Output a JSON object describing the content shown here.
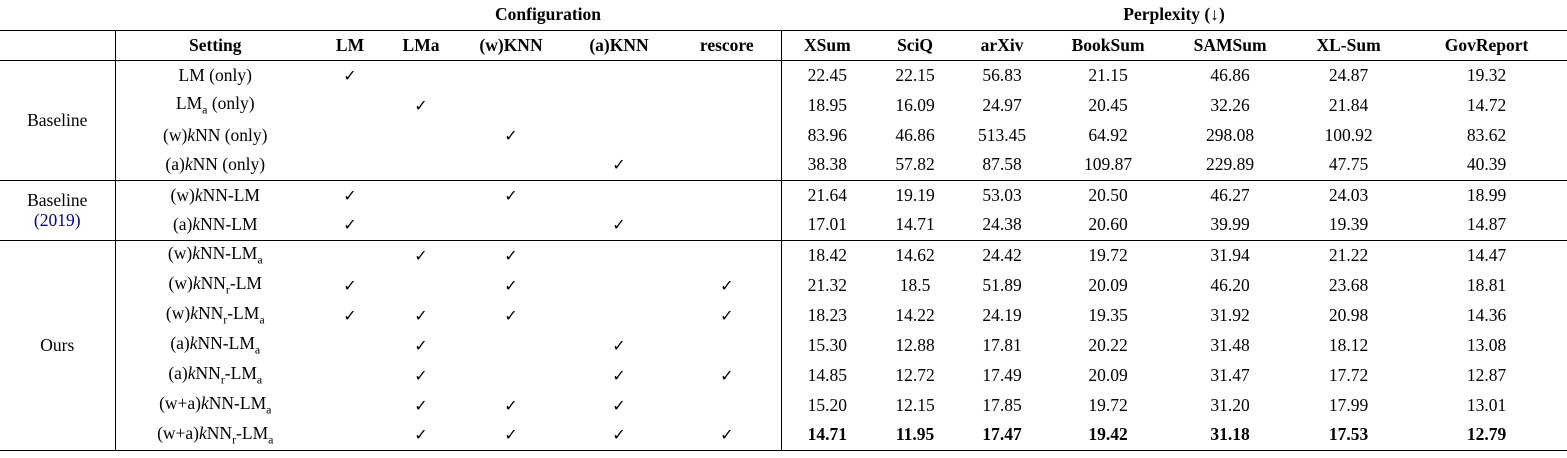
{
  "colors": {
    "citation": "#00009B",
    "text": "#000000",
    "background": "#FFFFFF"
  },
  "header": {
    "configuration": "Configuration",
    "perplexity": "Perplexity (↓)",
    "columns": {
      "setting": "Setting",
      "lm": "LM",
      "lma": "LMa",
      "wknn": "(w)KNN",
      "aknn": "(a)KNN",
      "rescore": "rescore",
      "datasets": [
        "XSum",
        "SciQ",
        "arXiv",
        "BookSum",
        "SAMSum",
        "XL-Sum",
        "GovReport"
      ]
    }
  },
  "body": {
    "check_glyph": "✓",
    "groups": [
      {
        "label": "Baseline",
        "rows": [
          {
            "setting_html": "LM (only)",
            "checks": [
              1,
              0,
              0,
              0,
              0
            ],
            "values": [
              "22.45",
              "22.15",
              "56.83",
              "21.15",
              "46.86",
              "24.87",
              "19.32"
            ],
            "bold": false
          },
          {
            "setting_html": "LM<sub>a</sub> (only)",
            "checks": [
              0,
              1,
              0,
              0,
              0
            ],
            "values": [
              "18.95",
              "16.09",
              "24.97",
              "20.45",
              "32.26",
              "21.84",
              "14.72"
            ],
            "bold": false
          },
          {
            "setting_html": "(w)<i>k</i>NN (only)",
            "checks": [
              0,
              0,
              1,
              0,
              0
            ],
            "values": [
              "83.96",
              "46.86",
              "513.45",
              "64.92",
              "298.08",
              "100.92",
              "83.62"
            ],
            "bold": false
          },
          {
            "setting_html": "(a)<i>k</i>NN (only)",
            "checks": [
              0,
              0,
              0,
              1,
              0
            ],
            "values": [
              "38.38",
              "57.82",
              "87.58",
              "109.87",
              "229.89",
              "47.75",
              "40.39"
            ],
            "bold": false
          }
        ]
      },
      {
        "label": "Baseline",
        "citation": "(2019)",
        "rows": [
          {
            "setting_html": "(w)<i>k</i>NN-LM",
            "checks": [
              1,
              0,
              1,
              0,
              0
            ],
            "values": [
              "21.64",
              "19.19",
              "53.03",
              "20.50",
              "46.27",
              "24.03",
              "18.99"
            ],
            "bold": false
          },
          {
            "setting_html": "(a)<i>k</i>NN-LM",
            "checks": [
              1,
              0,
              0,
              1,
              0
            ],
            "values": [
              "17.01",
              "14.71",
              "24.38",
              "20.60",
              "39.99",
              "19.39",
              "14.87"
            ],
            "bold": false
          }
        ]
      },
      {
        "label": "Ours",
        "rows": [
          {
            "setting_html": "(w)<i>k</i>NN-LM<sub>a</sub>",
            "checks": [
              0,
              1,
              1,
              0,
              0
            ],
            "values": [
              "18.42",
              "14.62",
              "24.42",
              "19.72",
              "31.94",
              "21.22",
              "14.47"
            ],
            "bold": false
          },
          {
            "setting_html": "(w)<i>k</i>NN<sub>r</sub>-LM",
            "checks": [
              1,
              0,
              1,
              0,
              1
            ],
            "values": [
              "21.32",
              "18.5",
              "51.89",
              "20.09",
              "46.20",
              "23.68",
              "18.81"
            ],
            "bold": false
          },
          {
            "setting_html": "(w)<i>k</i>NN<sub>r</sub>-LM<sub>a</sub>",
            "checks": [
              1,
              1,
              1,
              0,
              1
            ],
            "values": [
              "18.23",
              "14.22",
              "24.19",
              "19.35",
              "31.92",
              "20.98",
              "14.36"
            ],
            "bold": false
          },
          {
            "setting_html": "(a)<i>k</i>NN-LM<sub>a</sub>",
            "checks": [
              0,
              1,
              0,
              1,
              0
            ],
            "values": [
              "15.30",
              "12.88",
              "17.81",
              "20.22",
              "31.48",
              "18.12",
              "13.08"
            ],
            "bold": false
          },
          {
            "setting_html": "(a)<i>k</i>NN<sub>r</sub>-LM<sub>a</sub>",
            "checks": [
              0,
              1,
              0,
              1,
              1
            ],
            "values": [
              "14.85",
              "12.72",
              "17.49",
              "20.09",
              "31.47",
              "17.72",
              "12.87"
            ],
            "bold": false
          },
          {
            "setting_html": "(w+a)<i>k</i>NN-LM<sub>a</sub>",
            "checks": [
              0,
              1,
              1,
              1,
              0
            ],
            "values": [
              "15.20",
              "12.15",
              "17.85",
              "19.72",
              "31.20",
              "17.99",
              "13.01"
            ],
            "bold": false
          },
          {
            "setting_html": "(w+a)<i>k</i>NN<sub>r</sub>-LM<sub>a</sub>",
            "checks": [
              0,
              1,
              1,
              1,
              1
            ],
            "values": [
              "14.71",
              "11.95",
              "17.47",
              "19.42",
              "31.18",
              "17.53",
              "12.79"
            ],
            "bold": true
          }
        ]
      }
    ]
  }
}
